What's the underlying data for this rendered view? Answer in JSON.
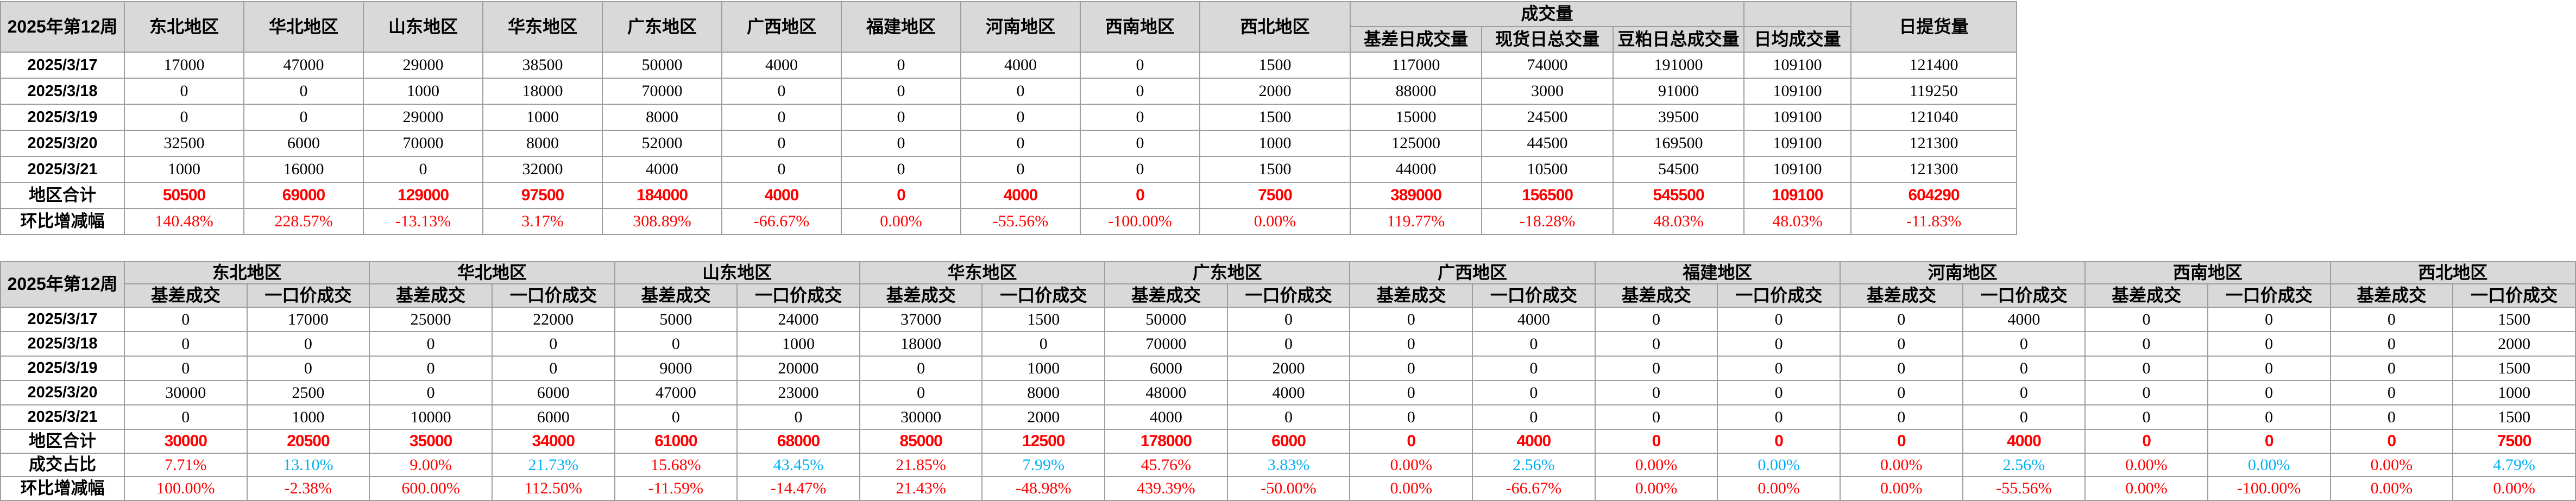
{
  "colors": {
    "header_bg": "#d9d9d9",
    "grid_line": "#9e9e9e",
    "total_text": "#ff0000",
    "pct_text": "#ff0000",
    "share_basis_text": "#ff0000",
    "share_fixed_text": "#00b0f0",
    "body_text": "#000000"
  },
  "top_table": {
    "title": "2025年第12周",
    "regions": [
      "东北地区",
      "华北地区",
      "山东地区",
      "华东地区",
      "广东地区",
      "广西地区",
      "福建地区",
      "河南地区",
      "西南地区",
      "西北地区"
    ],
    "volume_group": "成交量",
    "volume_sub_columns": [
      "基差日成交量",
      "现货日总交量",
      "豆粕日总成交量",
      "日均成交量"
    ],
    "pickup_column": "日提货量",
    "row_labels": [
      "2025/3/17",
      "2025/3/18",
      "2025/3/19",
      "2025/3/20",
      "2025/3/21"
    ],
    "rows": [
      [
        17000,
        47000,
        29000,
        38500,
        50000,
        4000,
        0,
        4000,
        0,
        1500,
        117000,
        74000,
        191000,
        109100,
        121400
      ],
      [
        0,
        0,
        1000,
        18000,
        70000,
        0,
        0,
        0,
        0,
        2000,
        88000,
        3000,
        91000,
        109100,
        119250
      ],
      [
        0,
        0,
        29000,
        1000,
        8000,
        0,
        0,
        0,
        0,
        1500,
        15000,
        24500,
        39500,
        109100,
        121040
      ],
      [
        32500,
        6000,
        70000,
        8000,
        52000,
        0,
        0,
        0,
        0,
        1000,
        125000,
        44500,
        169500,
        109100,
        121300
      ],
      [
        1000,
        16000,
        0,
        32000,
        4000,
        0,
        0,
        0,
        0,
        1500,
        44000,
        10500,
        54500,
        109100,
        121300
      ]
    ],
    "total_label": "地区合计",
    "total_values": [
      50500,
      69000,
      129000,
      97500,
      184000,
      4000,
      0,
      4000,
      0,
      7500,
      389000,
      156500,
      545500,
      109100,
      604290
    ],
    "pct_label": "环比增减幅",
    "pct_values": [
      "140.48%",
      "228.57%",
      "-13.13%",
      "3.17%",
      "308.89%",
      "-66.67%",
      "0.00%",
      "-55.56%",
      "-100.00%",
      "0.00%",
      "119.77%",
      "-18.28%",
      "48.03%",
      "48.03%",
      "-11.83%"
    ]
  },
  "bottom_table": {
    "title": "2025年第12周",
    "regions": [
      "东北地区",
      "华北地区",
      "山东地区",
      "华东地区",
      "广东地区",
      "广西地区",
      "福建地区",
      "河南地区",
      "西南地区",
      "西北地区"
    ],
    "sub_columns": [
      "基差成交",
      "一口价成交"
    ],
    "row_labels": [
      "2025/3/17",
      "2025/3/18",
      "2025/3/19",
      "2025/3/20",
      "2025/3/21"
    ],
    "rows": [
      [
        0,
        17000,
        25000,
        22000,
        5000,
        24000,
        37000,
        1500,
        50000,
        0,
        0,
        4000,
        0,
        0,
        0,
        4000,
        0,
        0,
        0,
        1500
      ],
      [
        0,
        0,
        0,
        0,
        0,
        1000,
        18000,
        0,
        70000,
        0,
        0,
        0,
        0,
        0,
        0,
        0,
        0,
        0,
        0,
        2000
      ],
      [
        0,
        0,
        0,
        0,
        9000,
        20000,
        0,
        1000,
        6000,
        2000,
        0,
        0,
        0,
        0,
        0,
        0,
        0,
        0,
        0,
        1500
      ],
      [
        30000,
        2500,
        0,
        6000,
        47000,
        23000,
        0,
        8000,
        48000,
        4000,
        0,
        0,
        0,
        0,
        0,
        0,
        0,
        0,
        0,
        1000
      ],
      [
        0,
        1000,
        10000,
        6000,
        0,
        0,
        30000,
        2000,
        4000,
        0,
        0,
        0,
        0,
        0,
        0,
        0,
        0,
        0,
        0,
        1500
      ]
    ],
    "total_label": "地区合计",
    "total_values": [
      30000,
      20500,
      35000,
      34000,
      61000,
      68000,
      85000,
      12500,
      178000,
      6000,
      0,
      4000,
      0,
      0,
      0,
      4000,
      0,
      0,
      0,
      7500
    ],
    "share_label": "成交占比",
    "share_values": [
      "7.71%",
      "13.10%",
      "9.00%",
      "21.73%",
      "15.68%",
      "43.45%",
      "21.85%",
      "7.99%",
      "45.76%",
      "3.83%",
      "0.00%",
      "2.56%",
      "0.00%",
      "0.00%",
      "0.00%",
      "2.56%",
      "0.00%",
      "0.00%",
      "0.00%",
      "4.79%"
    ],
    "pct_label": "环比增减幅",
    "pct_values": [
      "100.00%",
      "-2.38%",
      "600.00%",
      "112.50%",
      "-11.59%",
      "-14.47%",
      "21.43%",
      "-48.98%",
      "439.39%",
      "-50.00%",
      "0.00%",
      "-66.67%",
      "0.00%",
      "0.00%",
      "0.00%",
      "-55.56%",
      "0.00%",
      "-100.00%",
      "0.00%",
      "0.00%"
    ]
  }
}
